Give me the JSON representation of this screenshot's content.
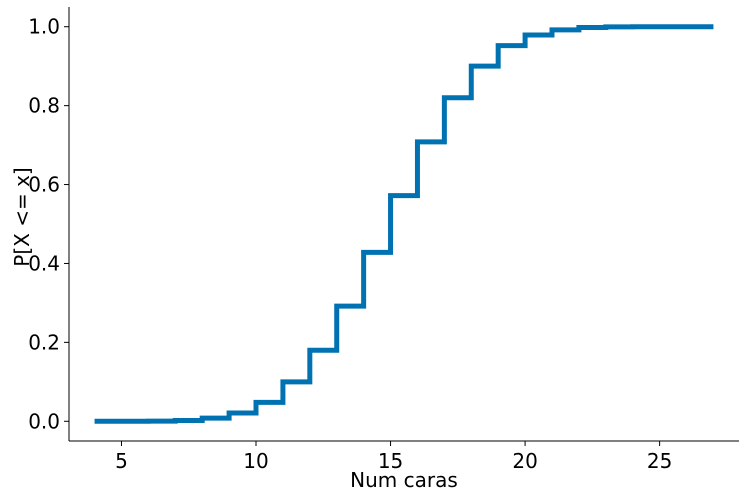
{
  "chart_data": {
    "type": "line",
    "drawstyle": "steps-post",
    "title": "",
    "xlabel": "Num caras",
    "ylabel": "P[X <= x]",
    "xlim": [
      3.05,
      27.95
    ],
    "ylim": [
      -0.05,
      1.05
    ],
    "x_ticks": [
      5,
      10,
      15,
      20,
      25
    ],
    "x_tick_labels": [
      "5",
      "10",
      "15",
      "20",
      "25"
    ],
    "y_ticks": [
      0.0,
      0.2,
      0.4,
      0.6,
      0.8,
      1.0
    ],
    "y_tick_labels": [
      "0.0",
      "0.2",
      "0.4",
      "0.6",
      "0.8",
      "1.0"
    ],
    "grid": false,
    "color": "#0072b2",
    "series": [
      {
        "x": [
          4,
          5,
          6,
          7,
          8,
          9,
          10,
          11,
          12,
          13,
          14,
          15,
          16,
          17,
          18,
          19,
          20,
          21,
          22,
          23,
          24,
          25,
          26,
          27
        ],
        "values": [
          0.0,
          0.0,
          0.0005,
          0.002,
          0.008,
          0.021,
          0.048,
          0.1,
          0.18,
          0.292,
          0.428,
          0.572,
          0.708,
          0.82,
          0.9,
          0.952,
          0.979,
          0.992,
          0.998,
          0.9995,
          1.0,
          1.0,
          1.0,
          1.0
        ]
      }
    ]
  }
}
